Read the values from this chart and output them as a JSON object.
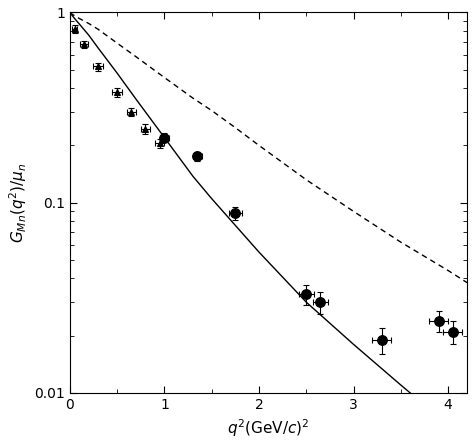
{
  "title": "",
  "xlabel": "q$^2$(GeV/c)$^2$",
  "ylabel": "G$_{Mn}$(q$^2$)/$\\mu_n$",
  "xlim": [
    0,
    4.2
  ],
  "ylim": [
    0.01,
    1.0
  ],
  "background_color": "#ffffff",
  "triangle_data": {
    "x": [
      0.05,
      0.15,
      0.3,
      0.5,
      0.65,
      0.8,
      0.95
    ],
    "y": [
      0.82,
      0.68,
      0.52,
      0.38,
      0.3,
      0.245,
      0.205
    ],
    "xerr": [
      0.03,
      0.04,
      0.05,
      0.05,
      0.05,
      0.05,
      0.05
    ],
    "yerr": [
      0.04,
      0.03,
      0.025,
      0.02,
      0.015,
      0.015,
      0.012
    ]
  },
  "circle_data": {
    "x": [
      1.0,
      1.35,
      1.75,
      2.5,
      2.65,
      3.3,
      3.9,
      4.05
    ],
    "y": [
      0.22,
      0.175,
      0.088,
      0.033,
      0.03,
      0.019,
      0.024,
      0.021
    ],
    "xerr": [
      0.05,
      0.05,
      0.07,
      0.08,
      0.08,
      0.1,
      0.1,
      0.1
    ],
    "yerr": [
      0.012,
      0.01,
      0.007,
      0.004,
      0.004,
      0.003,
      0.003,
      0.003
    ]
  },
  "solid_line": {
    "x": [
      0.0,
      0.05,
      0.1,
      0.2,
      0.3,
      0.5,
      0.7,
      1.0,
      1.3,
      1.5,
      1.75,
      2.0,
      2.5,
      3.0,
      3.5,
      4.0,
      4.2
    ],
    "y": [
      1.0,
      0.93,
      0.87,
      0.76,
      0.65,
      0.48,
      0.35,
      0.22,
      0.138,
      0.105,
      0.076,
      0.055,
      0.03,
      0.018,
      0.011,
      0.0068,
      0.006
    ]
  },
  "dashed_line": {
    "x": [
      0.0,
      0.05,
      0.1,
      0.2,
      0.3,
      0.5,
      0.7,
      1.0,
      1.3,
      1.5,
      1.75,
      2.0,
      2.5,
      3.0,
      3.5,
      4.0,
      4.2
    ],
    "y": [
      1.0,
      0.96,
      0.93,
      0.875,
      0.815,
      0.69,
      0.585,
      0.455,
      0.355,
      0.305,
      0.248,
      0.2,
      0.132,
      0.09,
      0.062,
      0.044,
      0.038
    ]
  }
}
